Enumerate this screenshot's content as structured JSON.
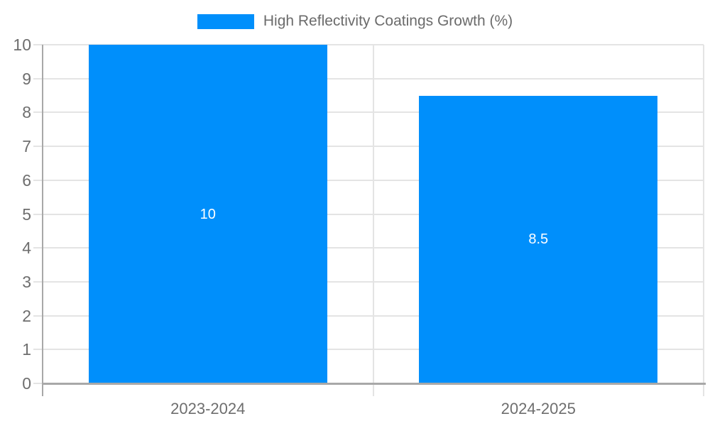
{
  "chart_data": {
    "type": "bar",
    "categories": [
      "2023-2024",
      "2024-2025"
    ],
    "series": [
      {
        "name": "High Reflectivity Coatings Growth (%)",
        "values": [
          10,
          8.5
        ]
      }
    ],
    "bar_value_labels": [
      "10",
      "8.5"
    ],
    "title": "",
    "xlabel": "",
    "ylabel": "",
    "ylim": [
      0,
      10
    ],
    "ytick_labels": [
      "0",
      "1",
      "2",
      "3",
      "4",
      "5",
      "6",
      "7",
      "8",
      "9",
      "10"
    ],
    "grid": true,
    "legend": {
      "position": "top",
      "label": "High Reflectivity Coatings Growth (%)"
    },
    "colors": {
      "bar": "#008FFB",
      "grid": "#e4e4e4",
      "axis": "#a8a8a8",
      "tick_text": "#6e6e6e",
      "legend_text": "#6b6b6b",
      "bar_label_text": "#ffffff"
    }
  }
}
